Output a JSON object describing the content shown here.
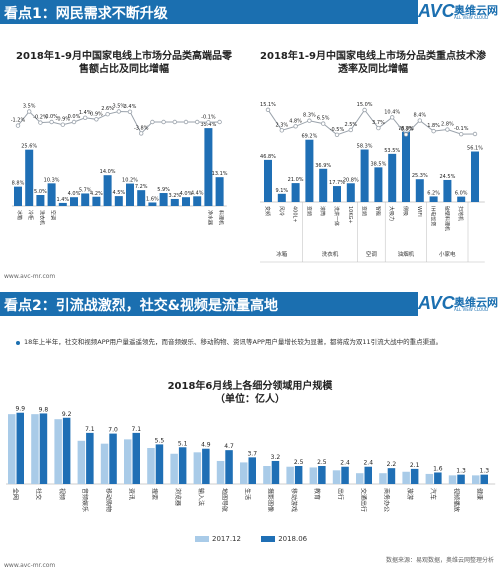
{
  "section1": {
    "title": "看点1：网民需求不断升级"
  },
  "section2": {
    "title": "看点2：引流战激烈，社交&视频是流量高地"
  },
  "logo": {
    "avc": "AVC",
    "cn": "奥维云网",
    "sub": "ALL VIEW CLOUD"
  },
  "watermark": "www.avc-mr.com",
  "section2_note": "18年上半年，社交和视频APP用户量遥遥领先，而音频娱乐、移动购物、资讯等APP用户量增长较为显著，都将成为双11引流大战中的重点渠道。",
  "source_text": "数据来源：易观数据，奥维云网整理分析",
  "colors": {
    "header": "#1b6fb0",
    "bar_dark": "#1f6fb5",
    "bar_light": "#a9cbe8",
    "line": "#9aa2ab"
  },
  "chart_data": [
    {
      "type": "bar",
      "title": "2018年1-9月中国家电线上市场分品类高端品零售额占比及同比增幅",
      "categories": [
        "冰箱",
        "冷柜",
        "洗衣机",
        "空调",
        "彩电",
        "烟机",
        "灶具",
        "电热",
        "燃热",
        "净水器",
        "微波炉",
        "电烤箱",
        "电饭煲",
        "净水机",
        "料理机",
        "吸尘器",
        "空净",
        "饮水机",
        "挂烫机"
      ],
      "series": [
        {
          "values": [
            8.8,
            25.6,
            5.0,
            10.3,
            1.4,
            4.0,
            5.7,
            4.2,
            14.0,
            4.5,
            10.2,
            7.2,
            1.6,
            5.9,
            3.2,
            4.0,
            4.4,
            35.4,
            13.1
          ]
        },
        {
          "values": [
            -1.2,
            3.5,
            -0.2,
            0.0,
            -0.9,
            0.0,
            1.4,
            0.9,
            2.6,
            3.5,
            3.4,
            -3.8,
            0.0,
            0.0,
            0.0,
            0.0,
            0.0,
            -0.1,
            0.0
          ]
        }
      ],
      "data_labels_bar": [
        "8.8%",
        "25.6%",
        "5.0%",
        "10.3%",
        "1.4%",
        "4.0%",
        "5.7%",
        "4.2%",
        "14.0%",
        "4.5%",
        "10.2%",
        "7.2%",
        "1.6%",
        "5.9%",
        "3.2%",
        "4.0%",
        "4.4%",
        "35.4%",
        "13.1%"
      ],
      "data_labels_line": [
        "-1.2%",
        "3.5%",
        "-0.2%",
        "0.0%",
        "-0.9%",
        "0.0%",
        "1.4%",
        "0.9%",
        "2.6%",
        "3.5%",
        "3.4%",
        "-3.8%",
        "",
        "",
        "",
        "",
        "",
        "-0.1%",
        ""
      ],
      "x_tick_labels": [
        "冰箱",
        "冷柜",
        "洗衣机",
        "空调",
        "",
        "",
        "",
        "",
        "",
        "",
        "",
        "",
        "",
        "",
        "",
        "",
        "",
        "净水器",
        "料理机"
      ]
    },
    {
      "type": "bar",
      "title": "2018年1-9月中国家电线上市场分品类重点技术渗透率及同比增幅",
      "groups": [
        {
          "name": "冰箱",
          "items": [
            "变频",
            "风冷",
            "400L+"
          ]
        },
        {
          "name": "洗衣机",
          "items": [
            "变频",
            "滚筒",
            "洗烘一体",
            "10KG+"
          ]
        },
        {
          "name": "空调",
          "items": [
            "变频",
            "智能"
          ]
        },
        {
          "name": "油烟机",
          "items": [
            "大吸力",
            "侧吸",
            "WIFI"
          ]
        },
        {
          "name": "小家电",
          "items": [
            "IH电饭煲",
            "破壁料理机",
            "扫地机"
          ]
        }
      ],
      "series": [
        {
          "values": [
            46.8,
            9.1,
            21.0,
            69.2,
            36.9,
            17.7,
            20.8,
            58.3,
            38.5,
            53.5,
            78.0,
            25.3,
            6.2,
            24.5,
            6.0,
            56.1
          ]
        },
        {
          "values": [
            15.1,
            2.3,
            4.8,
            8.3,
            6.5,
            -0.5,
            2.5,
            15.0,
            3.7,
            10.4,
            -0.3,
            8.4,
            1.8,
            2.8,
            -0.1,
            0.0
          ]
        }
      ],
      "data_labels_bar": [
        "46.8%",
        "9.1%",
        "21.0%",
        "69.2%",
        "36.9%",
        "17.7%",
        "20.8%",
        "58.3%",
        "38.5%",
        "53.5%",
        "78.0%",
        "25.3%",
        "6.2%",
        "24.5%",
        "6.0%",
        "56.1%"
      ],
      "data_labels_line": [
        "15.1%",
        "2.3%",
        "4.8%",
        "8.3%",
        "6.5%",
        "-0.5%",
        "2.5%",
        "15.0%",
        "3.7%",
        "10.4%",
        "-0.3%",
        "8.4%",
        "1.8%",
        "2.8%",
        "-0.1%",
        ""
      ]
    },
    {
      "type": "bar",
      "title": "2018年6月线上各细分领域用户规模",
      "subtitle": "（单位：亿人）",
      "categories": [
        "全网",
        "社交",
        "视频",
        "音频娱乐",
        "移动购物",
        "资讯",
        "搜索",
        "浏览器",
        "输入法",
        "地图导航",
        "生活",
        "摄影图像",
        "移动游戏",
        "教育",
        "出行",
        "交通出行",
        "商务办公",
        "旅游",
        "汽车",
        "视频播放",
        "健康"
      ],
      "series": [
        {
          "name": "2017.12",
          "values": [
            9.7,
            9.7,
            9.0,
            6.0,
            5.6,
            6.2,
            5.0,
            4.2,
            4.4,
            3.2,
            3.0,
            2.5,
            2.4,
            2.3,
            1.9,
            1.5,
            1.5,
            1.7,
            1.4,
            1.2,
            1.2
          ]
        },
        {
          "name": "2018.06",
          "values": [
            9.9,
            9.8,
            9.2,
            7.1,
            7.0,
            7.1,
            5.5,
            5.1,
            4.9,
            4.7,
            3.7,
            3.2,
            2.5,
            2.5,
            2.4,
            2.4,
            2.2,
            2.1,
            1.6,
            1.3,
            1.3
          ]
        }
      ],
      "data_labels_top": [
        "9.9",
        "9.8",
        "9.2",
        "7.1",
        "7.0",
        "7.1",
        "5.5",
        "5.1",
        "4.9",
        "4.7",
        "3.7",
        "3.2",
        "2.5",
        "2.5",
        "2.4",
        "2.4",
        "2.2",
        "2.1",
        "1.6",
        "1.3",
        "1.3"
      ]
    }
  ]
}
